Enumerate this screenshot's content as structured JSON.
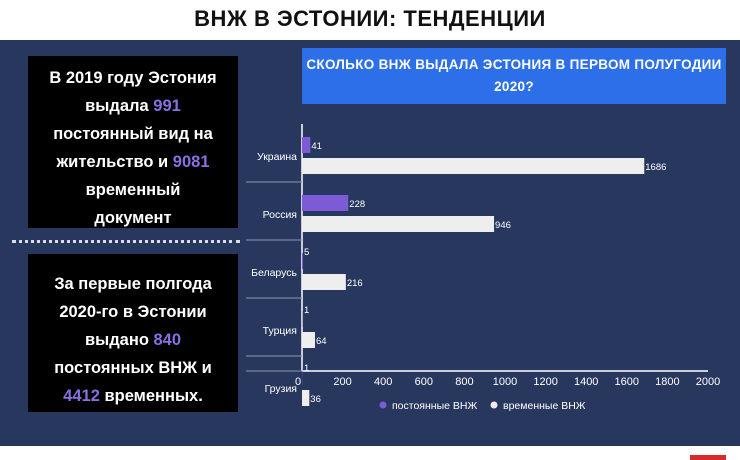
{
  "header": {
    "title": "ВНЖ В ЭСТОНИИ: ТЕНДЕНЦИИ"
  },
  "box_top": {
    "lines": [
      [
        {
          "t": "В 2019 году Эстония"
        }
      ],
      [
        {
          "t": "выдала "
        },
        {
          "t": "991",
          "hl": true
        }
      ],
      [
        {
          "t": "постоянный вид на"
        }
      ],
      [
        {
          "t": "жительство и "
        },
        {
          "t": "9081",
          "hl": true
        }
      ],
      [
        {
          "t": "временный"
        }
      ],
      [
        {
          "t": "документ"
        }
      ]
    ]
  },
  "box_bottom": {
    "lines": [
      [
        {
          "t": "За первые полгода"
        }
      ],
      [
        {
          "t": "2020-го в Эстонии"
        }
      ],
      [
        {
          "t": "выдано "
        },
        {
          "t": "840",
          "hl": true
        }
      ],
      [
        {
          "t": "постоянных ВНЖ и"
        }
      ],
      [
        {
          "t": "4412",
          "hl": true
        },
        {
          "t": " временных."
        }
      ]
    ]
  },
  "colors": {
    "highlight": "#8a6fe0",
    "panel": "#27375e",
    "series_permanent": "#7d5bd6",
    "series_temporary": "#eeeeee"
  },
  "chart_data": {
    "type": "bar",
    "orientation": "horizontal",
    "title": "СКОЛЬКО ВНЖ ВЫДАЛА ЭСТОНИЯ В ПЕРВОМ ПОЛУГОДИИ 2020?",
    "categories": [
      "Украина",
      "Россия",
      "Беларусь",
      "Турция",
      "Грузия"
    ],
    "series": [
      {
        "name": "постоянные ВНЖ",
        "values": [
          41,
          228,
          5,
          1,
          1
        ]
      },
      {
        "name": "временные ВНЖ",
        "values": [
          1686,
          946,
          216,
          64,
          36
        ]
      }
    ],
    "xlim": [
      0,
      2000
    ],
    "xticks": [
      "0",
      "200",
      "400",
      "600",
      "800",
      "1000",
      "1200",
      "1400",
      "1600",
      "1800",
      "2000"
    ],
    "legend_position": "bottom-center",
    "grid": false
  }
}
